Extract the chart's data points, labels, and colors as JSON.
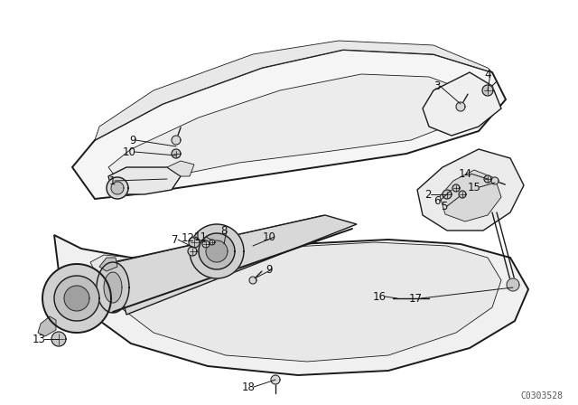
{
  "bg_color": "#ffffff",
  "line_color": "#1a1a1a",
  "fig_width": 6.4,
  "fig_height": 4.48,
  "dpi": 100,
  "watermark": "C0303528",
  "watermark_fontsize": 7,
  "label_fontsize": 8.5,
  "label_color": "#111111",
  "lw_main": 1.0,
  "lw_thin": 0.6,
  "lw_thick": 1.4,
  "panel_fill": "#f8f8f8",
  "tube_fill": "#e8e8e8",
  "inner_fill": "#efefef"
}
